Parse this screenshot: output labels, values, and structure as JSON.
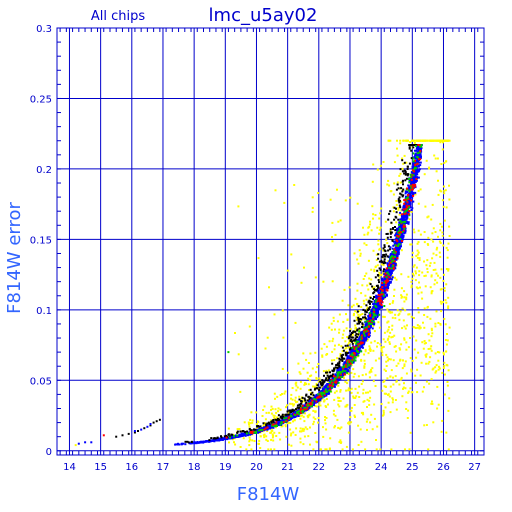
{
  "chart_data": {
    "type": "scatter",
    "title": "lmc_u5ay02",
    "subtitle": "All chips",
    "xlabel": "F814W",
    "ylabel": "F814W error",
    "xlim": [
      13.6,
      27.3
    ],
    "ylim": [
      -0.003,
      0.3
    ],
    "xticks": [
      "14",
      "15",
      "16",
      "17",
      "18",
      "19",
      "20",
      "21",
      "22",
      "23",
      "24",
      "25",
      "26",
      "27"
    ],
    "yticks": [
      "0",
      "0.05",
      "0.1",
      "0.15",
      "0.2",
      "0.25",
      "0.3"
    ],
    "grid": true,
    "colors": {
      "axes": "#0000cc",
      "title": "#0000cc",
      "label": "#3366ff",
      "main_sequence": "#0000ff",
      "outliers": "#ffff00",
      "black_points": "#000000",
      "red_points": "#ff0000",
      "green_points": "#00cc00"
    },
    "series_curve": {
      "description_points": [
        [
          14.3,
          0.005
        ],
        [
          14.7,
          0.006
        ],
        [
          15.6,
          0.01
        ],
        [
          16.2,
          0.014
        ],
        [
          16.8,
          0.02
        ],
        [
          17.3,
          0.002
        ],
        [
          18.0,
          0.003
        ],
        [
          19.0,
          0.004
        ],
        [
          20.0,
          0.008
        ],
        [
          21.0,
          0.013
        ],
        [
          22.0,
          0.02
        ],
        [
          23.0,
          0.033
        ],
        [
          23.5,
          0.045
        ],
        [
          24.0,
          0.065
        ],
        [
          24.3,
          0.085
        ],
        [
          24.6,
          0.11
        ],
        [
          24.8,
          0.14
        ],
        [
          25.0,
          0.175
        ],
        [
          25.2,
          0.215
        ]
      ]
    }
  }
}
